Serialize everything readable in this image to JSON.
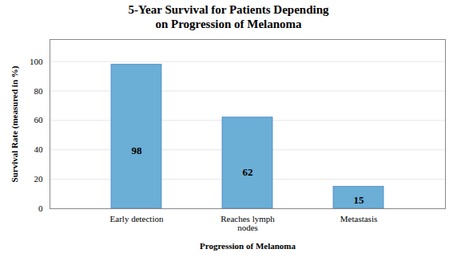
{
  "chart_data": {
    "type": "bar",
    "title": "5-Year Survival for Patients Depending\non Progression of Melanoma",
    "categories": [
      "Early detection",
      "Reaches lymph\nnodes",
      "Metastasis"
    ],
    "values": [
      98,
      62,
      15
    ],
    "color": "#6BAED6",
    "xlabel": "Progression of Melanoma",
    "ylabel": "Survival Rate (measured in %)",
    "ylim": [
      0,
      115
    ],
    "yticks": [
      0,
      20,
      40,
      60,
      80,
      100
    ],
    "grid": true,
    "data_labels": true
  }
}
